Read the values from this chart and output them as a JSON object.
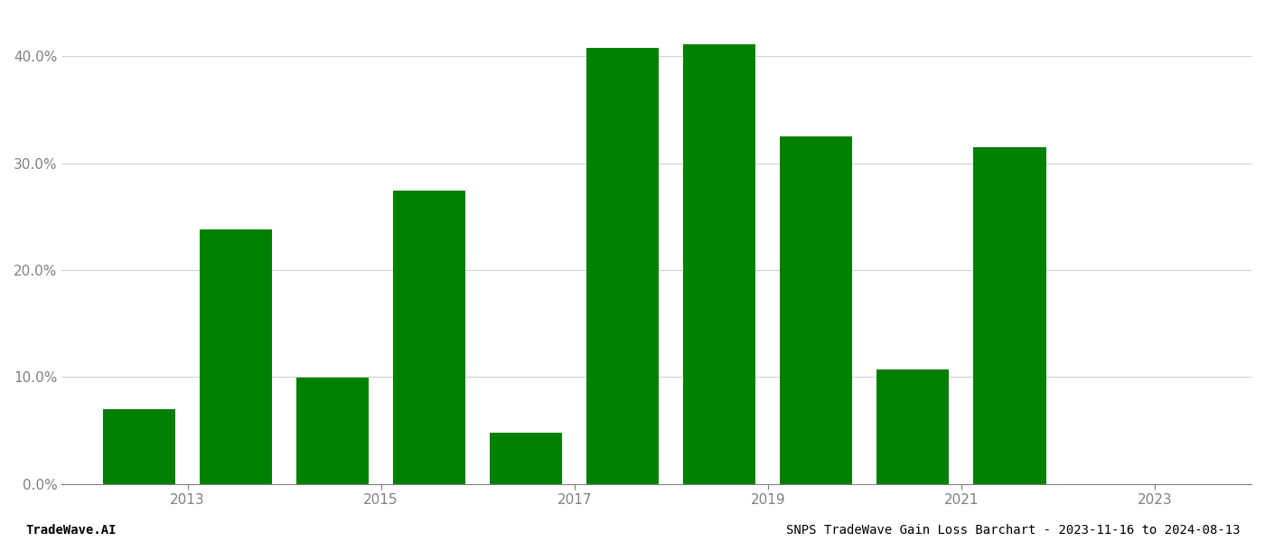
{
  "bar_positions": [
    0,
    1,
    2,
    3,
    4,
    5,
    6,
    7,
    8,
    9
  ],
  "values": [
    0.07,
    0.238,
    0.099,
    0.274,
    0.048,
    0.408,
    0.411,
    0.325,
    0.107,
    0.315
  ],
  "bar_color": "#008000",
  "background_color": "#ffffff",
  "ylabel_fontsize": 11,
  "xlabel_fontsize": 11,
  "tick_color": "#808080",
  "grid_color": "#d3d3d3",
  "footer_left": "TradeWave.AI",
  "footer_right": "SNPS TradeWave Gain Loss Barchart - 2023-11-16 to 2024-08-13",
  "ylim": [
    0,
    0.44
  ],
  "yticks": [
    0.0,
    0.1,
    0.2,
    0.3,
    0.4
  ],
  "xtick_positions": [
    0.5,
    2.5,
    4.5,
    6.5,
    8.5,
    10.5
  ],
  "xtick_labels": [
    "2013",
    "2015",
    "2017",
    "2019",
    "2021",
    "2023"
  ],
  "bar_width": 0.75
}
